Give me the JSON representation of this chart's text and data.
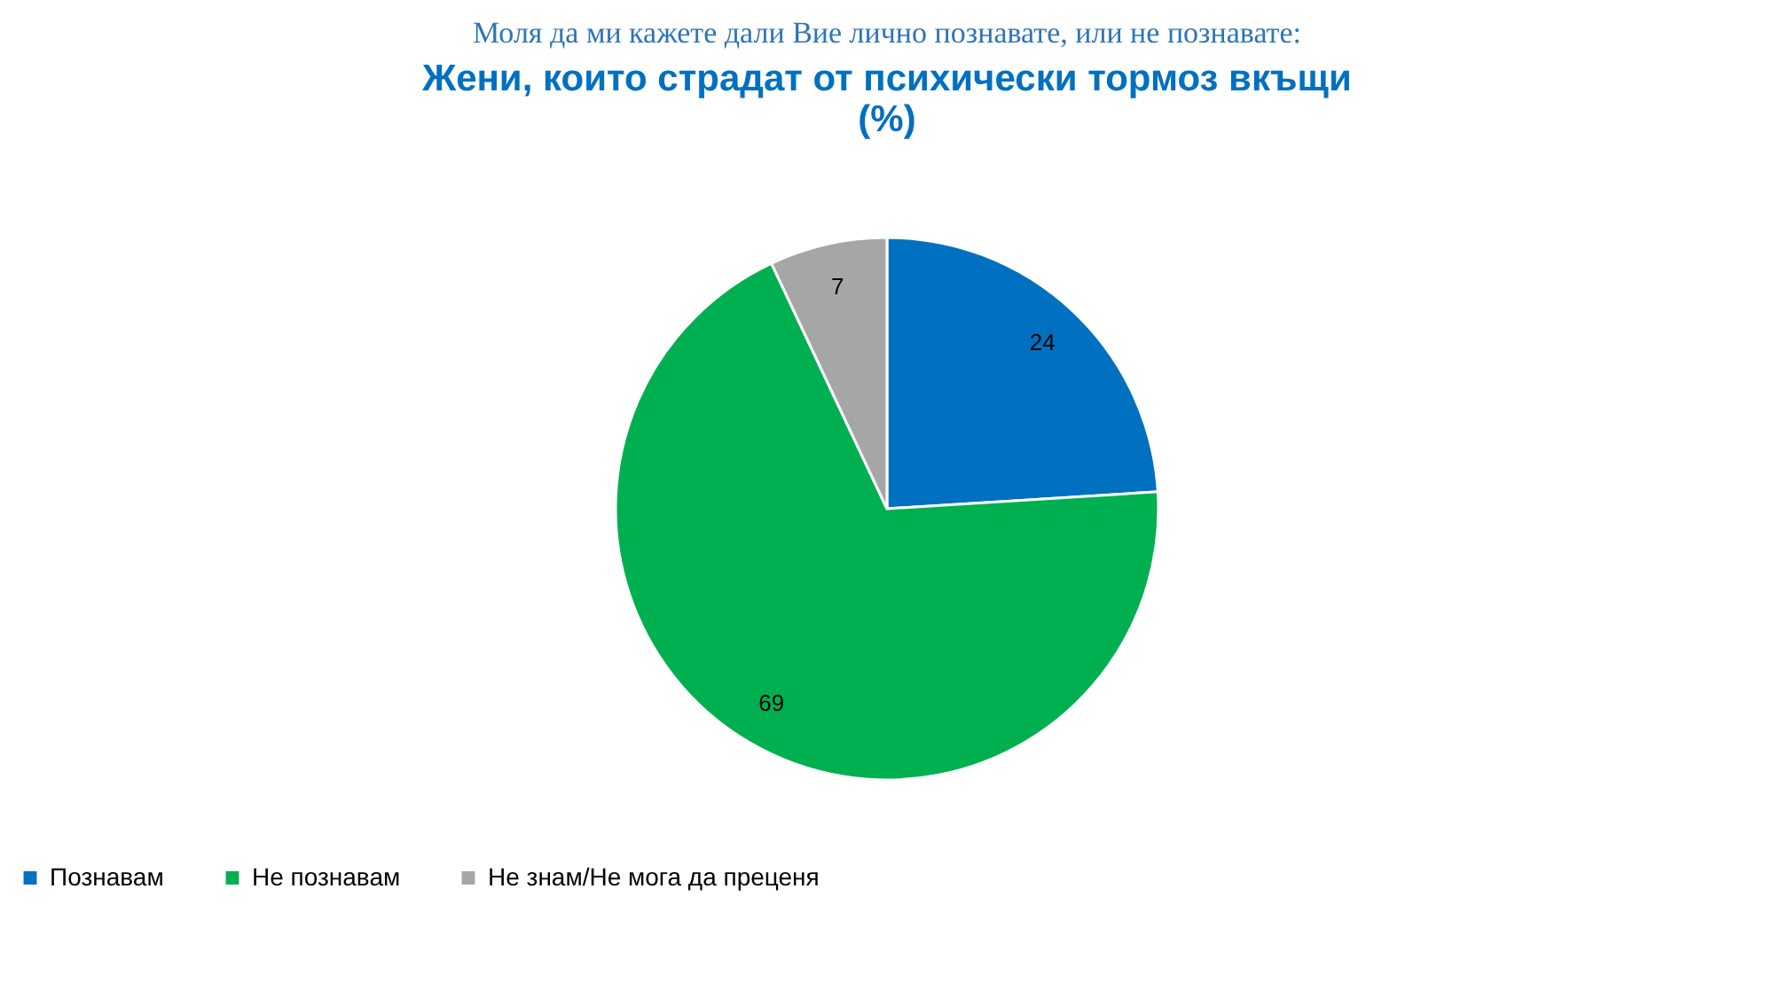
{
  "chart_data": {
    "type": "pie",
    "title": "Моля да ми кажете дали Вие лично познавате, или не познавате:",
    "subtitle": "Жени, които страдат от психически тормоз вкъщи",
    "annotations": [
      "(%)"
    ],
    "categories": [
      "Познавам",
      "Не познавам",
      "Не знам/Не мога да преценя"
    ],
    "values": [
      24,
      69,
      7
    ],
    "colors": [
      "#0070c0",
      "#00b050",
      "#a6a6a6"
    ],
    "data_labels": true,
    "legend": "bottom"
  }
}
